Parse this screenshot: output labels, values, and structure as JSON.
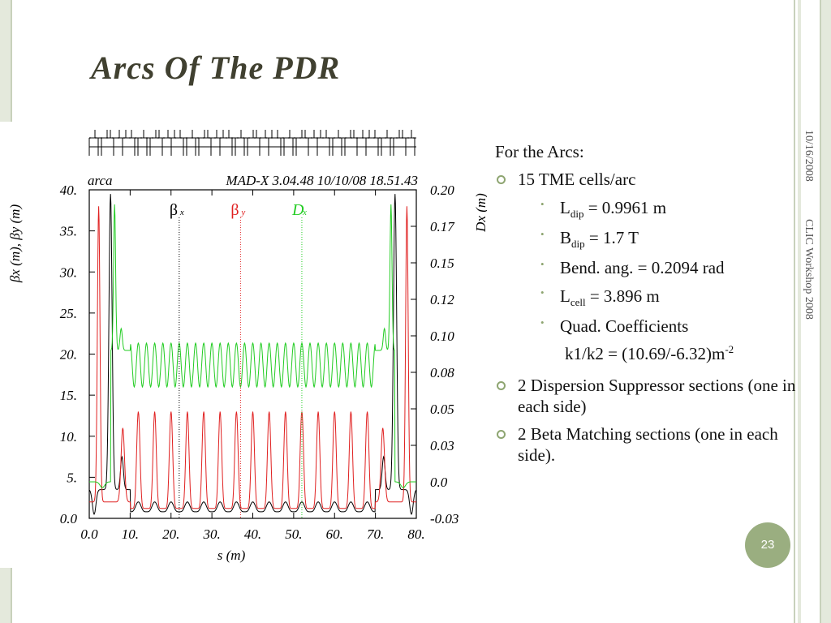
{
  "slide": {
    "title": "Arcs Of The PDR",
    "date": "10/16/2008",
    "footer": "CLIC Workshop 2008",
    "page_number": "23"
  },
  "content": {
    "intro": "For the Arcs:",
    "bullet1": "15 TME cells/arc",
    "ldip_letter": "L",
    "ldip_sub": "dip",
    "ldip_value": " =  0.9961 m",
    "bdip_letter": "B",
    "bdip_sub": "dip",
    "bdip_value": " = 1.7 T",
    "bend": "Bend. ang. = 0.2094 rad",
    "lcell_letter": "L",
    "lcell_sub": "cell",
    "lcell_value": " = 3.896 m",
    "quad": "Quad. Coefficients",
    "k_text": "k1/k2 = (10.69/-6.32)m",
    "k_sup": "-2",
    "bullet2": "2 Dispersion Suppressor sections (one in each side)",
    "bullet3": "2 Beta Matching sections (one in each side)."
  },
  "chart_data": {
    "type": "line",
    "header_left": "arca",
    "header_right": "MAD-X 3.04.48   10/10/08 18.51.43",
    "xlabel": "s (m)",
    "ylabel_left": "βx (m), βy (m)",
    "ylabel_right": "Dx (m)",
    "xlim": [
      0,
      80
    ],
    "ylim_left": [
      0,
      40
    ],
    "ylim_right": [
      -0.025,
      0.2
    ],
    "x_ticks": [
      "0.0",
      "10.",
      "20.",
      "30.",
      "40.",
      "50.",
      "60.",
      "70.",
      "80."
    ],
    "y_left_ticks": [
      "0.0",
      "5.",
      "10.",
      "15.",
      "20.",
      "25.",
      "30.",
      "35.",
      "40."
    ],
    "y_right_ticks": [
      "-0.03",
      "0.0",
      "0.03",
      "0.05",
      "0.08",
      "0.10",
      "0.12",
      "0.15",
      "0.17",
      "0.20"
    ],
    "legend": [
      {
        "label": "β",
        "sub": "x",
        "color": "#000000",
        "x": 22
      },
      {
        "label": "β",
        "sub": "y",
        "color": "#e02020",
        "x": 37
      },
      {
        "label": "D",
        "sub": "x",
        "color": "#22cc22",
        "x": 52
      }
    ],
    "series": [
      {
        "name": "βx",
        "color": "#000000",
        "axis": "left",
        "x": [
          0,
          1,
          2,
          3,
          4,
          5,
          6,
          7,
          8,
          9,
          10,
          15,
          20,
          25,
          30,
          35,
          40,
          45,
          50,
          55,
          60,
          65,
          70,
          71,
          72,
          73,
          74,
          75,
          76,
          77,
          78,
          79,
          80
        ],
        "y": [
          3,
          0.5,
          1.5,
          5,
          28,
          38,
          20,
          4,
          2,
          1,
          0.8,
          0.8,
          0.8,
          0.8,
          0.8,
          0.8,
          0.8,
          0.8,
          0.8,
          0.8,
          0.8,
          0.8,
          0.8,
          1,
          2,
          4,
          20,
          38,
          28,
          5,
          1.5,
          0.5,
          3
        ]
      },
      {
        "name": "βy",
        "color": "#e02020",
        "axis": "left",
        "x": [
          0,
          1,
          2,
          3,
          4,
          5,
          6,
          7,
          8,
          9,
          10,
          15,
          20,
          25,
          30,
          35,
          40,
          45,
          50,
          55,
          60,
          65,
          70,
          71,
          72,
          73,
          74,
          75,
          76,
          77,
          78,
          79,
          80
        ],
        "y": [
          2,
          8,
          38,
          14,
          2,
          1,
          2,
          6,
          11,
          8,
          3,
          13,
          13,
          13,
          13,
          13,
          13,
          13,
          13,
          13,
          13,
          13,
          3,
          8,
          11,
          6,
          2,
          1,
          2,
          14,
          38,
          8,
          2
        ]
      },
      {
        "name": "Dx",
        "color": "#22cc22",
        "axis": "right",
        "x": [
          0,
          2,
          4,
          5,
          6,
          6.8,
          7.5,
          8,
          8.5,
          9,
          9.5,
          10,
          15,
          20,
          25,
          30,
          35,
          40,
          45,
          50,
          55,
          60,
          65,
          70,
          70.5,
          71,
          71.5,
          72,
          72.5,
          73.2,
          74,
          75,
          76,
          78,
          80
        ],
        "y": [
          0.0,
          0.0,
          -0.01,
          0.0,
          0.19,
          0.12,
          0.09,
          0.11,
          0.09,
          0.095,
          0.085,
          0.09,
          0.09,
          0.09,
          0.09,
          0.09,
          0.09,
          0.09,
          0.09,
          0.09,
          0.09,
          0.09,
          0.09,
          0.09,
          0.085,
          0.095,
          0.09,
          0.11,
          0.09,
          0.12,
          0.19,
          0.0,
          -0.01,
          0.0,
          0.0
        ]
      }
    ]
  }
}
